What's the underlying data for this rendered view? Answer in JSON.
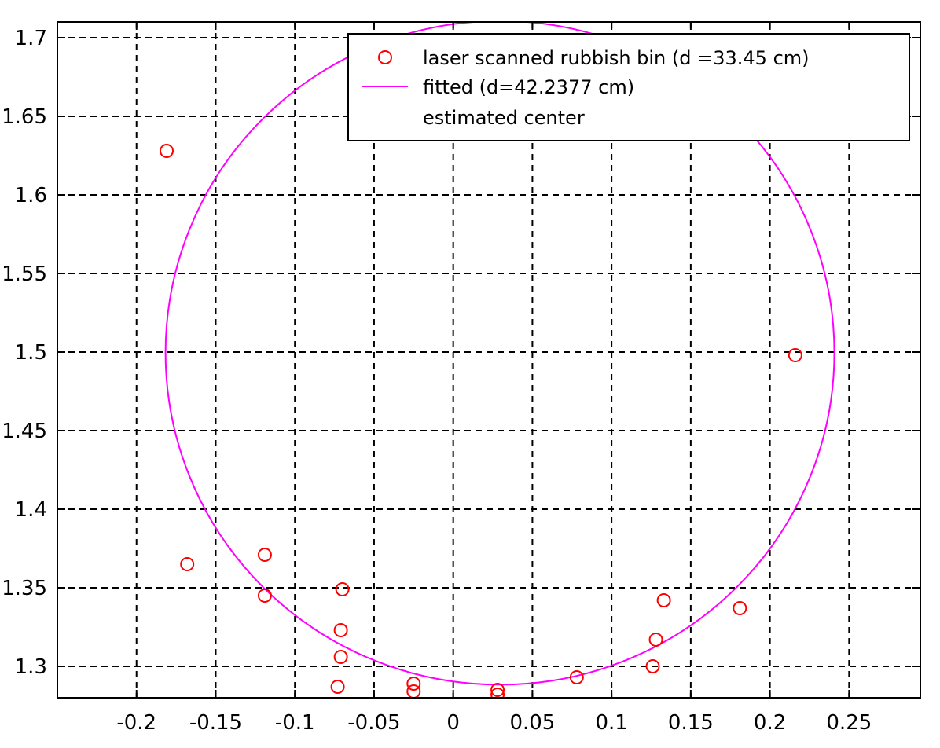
{
  "chart_data": {
    "type": "scatter",
    "title": "",
    "xlabel": "",
    "ylabel": "",
    "xlim": [
      -0.25,
      0.295
    ],
    "ylim": [
      1.28,
      1.71
    ],
    "grid": true,
    "legend_placement": "top-right",
    "x_ticks": [
      {
        "value": -0.2,
        "label": "-0.2"
      },
      {
        "value": -0.15,
        "label": "-0.15"
      },
      {
        "value": -0.1,
        "label": "-0.1"
      },
      {
        "value": -0.05,
        "label": "-0.05"
      },
      {
        "value": 0,
        "label": "0"
      },
      {
        "value": 0.05,
        "label": "0.05"
      },
      {
        "value": 0.1,
        "label": "0.1"
      },
      {
        "value": 0.15,
        "label": "0.15"
      },
      {
        "value": 0.2,
        "label": "0.2"
      },
      {
        "value": 0.25,
        "label": "0.25"
      }
    ],
    "y_ticks": [
      {
        "value": 1.3,
        "label": "1.3"
      },
      {
        "value": 1.35,
        "label": "1.35"
      },
      {
        "value": 1.4,
        "label": "1.4"
      },
      {
        "value": 1.45,
        "label": "1.45"
      },
      {
        "value": 1.5,
        "label": "1.5"
      },
      {
        "value": 1.55,
        "label": "1.55"
      },
      {
        "value": 1.6,
        "label": "1.6"
      },
      {
        "value": 1.65,
        "label": "1.65"
      },
      {
        "value": 1.7,
        "label": "1.7"
      }
    ],
    "series": [
      {
        "name": "laser scanned rubbish bin (d =33.45 cm)",
        "kind": "scatter",
        "marker": "circle",
        "color": "#ff0000",
        "points": [
          {
            "x": -0.181,
            "y": 1.628
          },
          {
            "x": -0.168,
            "y": 1.365
          },
          {
            "x": -0.119,
            "y": 1.371
          },
          {
            "x": -0.119,
            "y": 1.345
          },
          {
            "x": -0.07,
            "y": 1.349
          },
          {
            "x": -0.071,
            "y": 1.323
          },
          {
            "x": -0.071,
            "y": 1.306
          },
          {
            "x": -0.073,
            "y": 1.287
          },
          {
            "x": -0.025,
            "y": 1.289
          },
          {
            "x": -0.025,
            "y": 1.284
          },
          {
            "x": 0.028,
            "y": 1.285
          },
          {
            "x": 0.028,
            "y": 1.282
          },
          {
            "x": 0.078,
            "y": 1.293
          },
          {
            "x": 0.126,
            "y": 1.3
          },
          {
            "x": 0.128,
            "y": 1.317
          },
          {
            "x": 0.133,
            "y": 1.342
          },
          {
            "x": 0.181,
            "y": 1.337
          },
          {
            "x": 0.216,
            "y": 1.498
          }
        ]
      },
      {
        "name": "fitted (d=42.2377 cm)",
        "kind": "circle",
        "color": "#ff00ff",
        "center": {
          "x": 0.0295,
          "y": 1.4995
        },
        "diameter": 0.422377
      },
      {
        "name": "estimated center",
        "kind": "point",
        "color": "#000000"
      }
    ]
  }
}
